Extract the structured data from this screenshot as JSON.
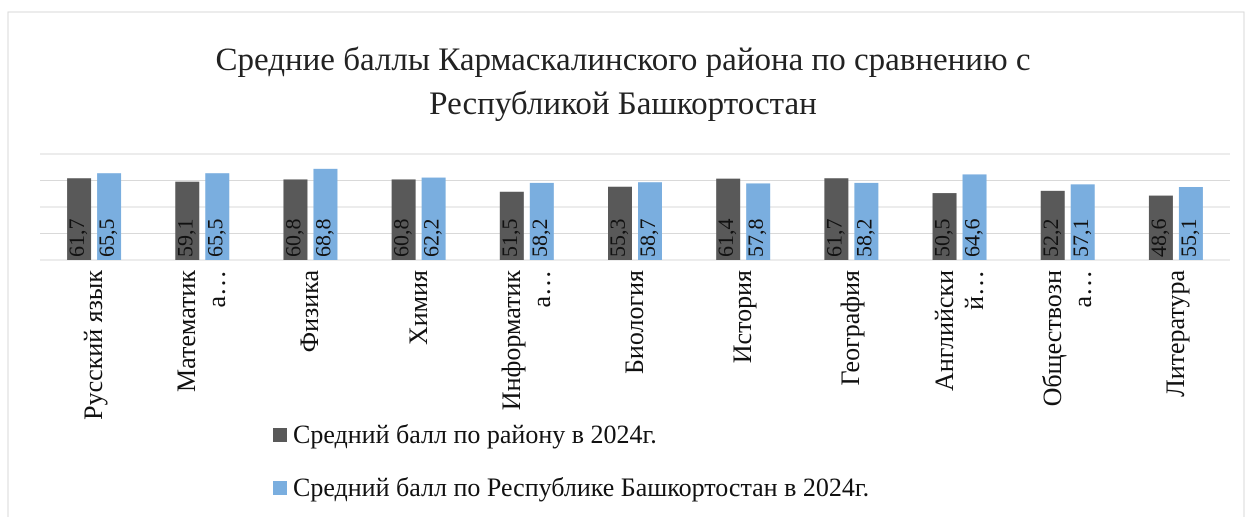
{
  "chart_data": {
    "type": "bar",
    "title": "Средние баллы Кармаскалинского района по сравнению с Республикой Башкортостан",
    "categories": [
      "Русский язык",
      "Математика…",
      "Физика",
      "Химия",
      "Информатика…",
      "Биология",
      "История",
      "География",
      "Английский…",
      "Обществозна…",
      "Литература"
    ],
    "series": [
      {
        "name": "Средний балл по району в 2024г.",
        "color": "#595959",
        "values": [
          61.7,
          59.1,
          60.8,
          60.8,
          51.5,
          55.3,
          61.4,
          61.7,
          50.5,
          52.2,
          48.6
        ],
        "value_labels": [
          "61,7",
          "59,1",
          "60,8",
          "60,8",
          "51,5",
          "55,3",
          "61,4",
          "61,7",
          "50,5",
          "52,2",
          "48,6"
        ]
      },
      {
        "name": "Средний балл по Республике Башкортостан в 2024г.",
        "color": "#7aaedf",
        "values": [
          65.5,
          65.5,
          68.8,
          62.2,
          58.2,
          58.7,
          57.8,
          58.2,
          64.6,
          57.1,
          55.1
        ],
        "value_labels": [
          "65,5",
          "65,5",
          "68,8",
          "62,2",
          "58,2",
          "58,7",
          "57,8",
          "58,2",
          "64,6",
          "57,1",
          "55,1"
        ]
      }
    ],
    "ylim": [
      0,
      80
    ],
    "yticks": [
      0,
      20,
      40,
      60,
      80
    ],
    "grid": true,
    "legend": "bottom"
  }
}
